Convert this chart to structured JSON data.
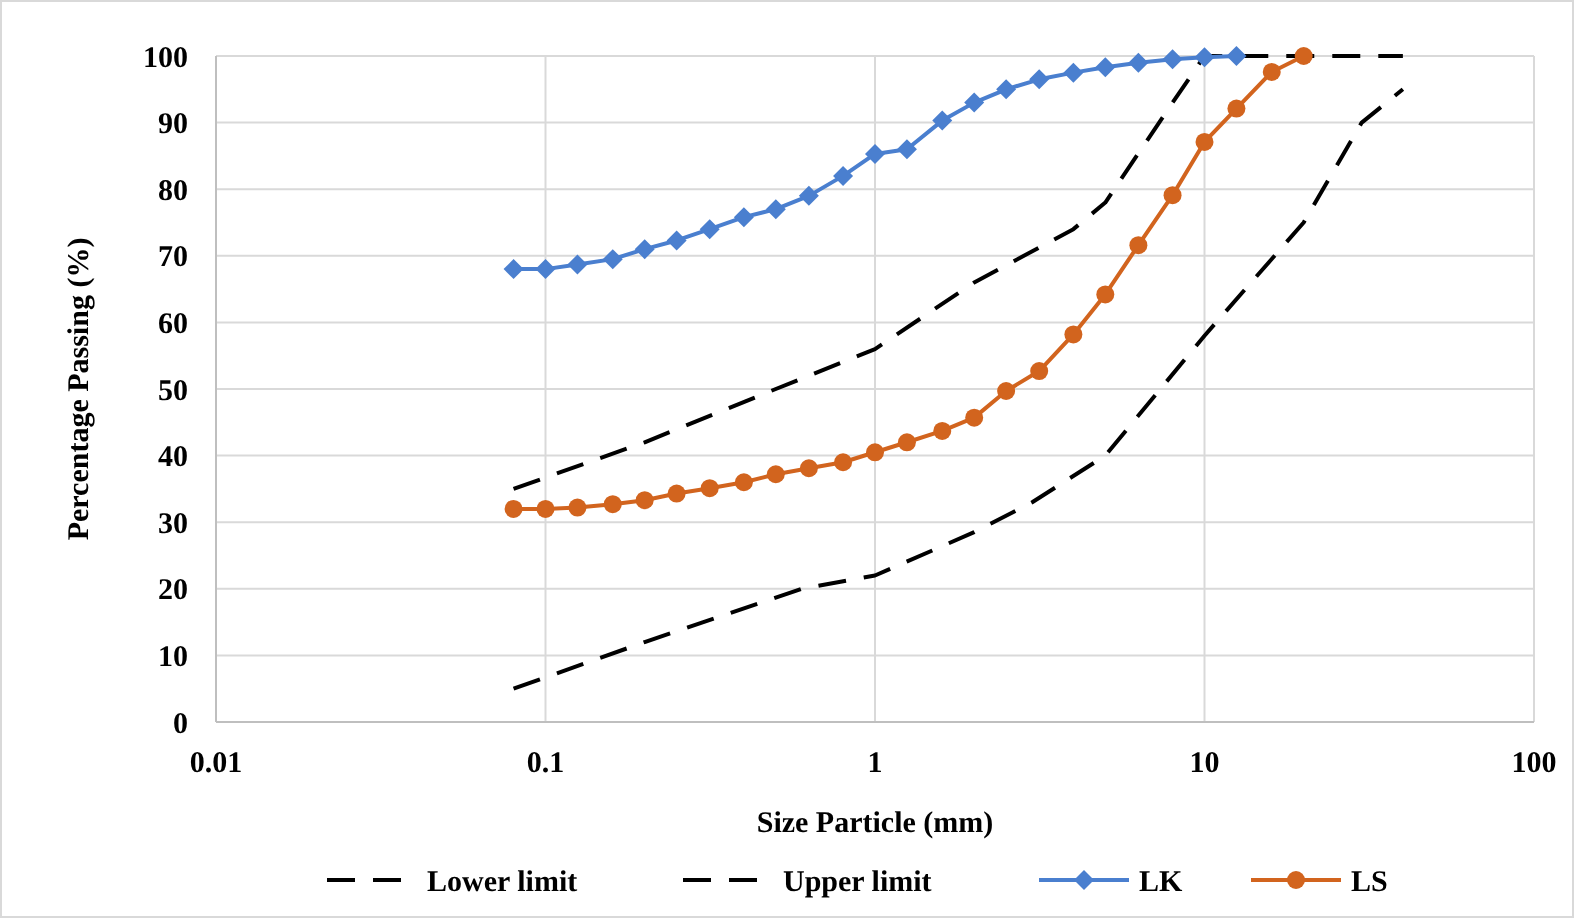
{
  "chart_data": {
    "type": "line",
    "xlabel": "Size Particle (mm)",
    "ylabel": "Percentage Passing (%)",
    "log": "x",
    "grid": true,
    "legend": "bottom",
    "xlim": [
      0.01,
      100
    ],
    "xticks": [
      0.01,
      0.1,
      1,
      10,
      100
    ],
    "ylim": [
      0,
      100
    ],
    "yticks": [
      0,
      10,
      20,
      30,
      40,
      50,
      60,
      70,
      80,
      90,
      100
    ],
    "series": [
      {
        "name": "Lower limit",
        "color": "#000000",
        "marker": "none",
        "line_style": "dashed",
        "x": [
          0.08,
          0.2,
          0.6,
          1,
          2,
          3,
          5,
          10,
          20,
          30,
          40
        ],
        "values": [
          5,
          12,
          20,
          22,
          28.5,
          33,
          40,
          58,
          75,
          90,
          95
        ]
      },
      {
        "name": "Upper limit",
        "color": "#000000",
        "marker": "none",
        "line_style": "dashed",
        "x": [
          0.08,
          0.2,
          0.5,
          1,
          2,
          4,
          5,
          8,
          10,
          20,
          40
        ],
        "values": [
          35,
          42,
          50,
          56,
          66,
          74,
          78,
          93,
          100,
          100,
          100
        ]
      },
      {
        "name": "LK",
        "color": "#4a7fcf",
        "marker": "diamond",
        "line_style": "solid",
        "x": [
          0.08,
          0.1,
          0.125,
          0.16,
          0.2,
          0.25,
          0.315,
          0.4,
          0.5,
          0.63,
          0.8,
          1,
          1.25,
          1.6,
          2,
          2.5,
          3.15,
          4,
          5,
          6.3,
          8,
          10,
          12.5
        ],
        "values": [
          68,
          68,
          68.7,
          69.5,
          71,
          72.3,
          74,
          75.8,
          77,
          79,
          82,
          85.3,
          86,
          90.3,
          93,
          95,
          96.5,
          97.5,
          98.3,
          99,
          99.5,
          99.8,
          100
        ]
      },
      {
        "name": "LS",
        "color": "#d2641e",
        "marker": "circle",
        "line_style": "solid",
        "x": [
          0.08,
          0.1,
          0.125,
          0.16,
          0.2,
          0.25,
          0.315,
          0.4,
          0.5,
          0.63,
          0.8,
          1,
          1.25,
          1.6,
          2,
          2.5,
          3.15,
          4,
          5,
          6.3,
          8,
          10,
          12.5,
          16,
          20
        ],
        "values": [
          32,
          32,
          32.2,
          32.7,
          33.3,
          34.3,
          35.1,
          36,
          37.2,
          38.1,
          39,
          40.5,
          42,
          43.7,
          45.7,
          49.7,
          52.7,
          58.2,
          64.2,
          71.6,
          79.1,
          87.1,
          92.1,
          97.6,
          100
        ]
      }
    ]
  }
}
